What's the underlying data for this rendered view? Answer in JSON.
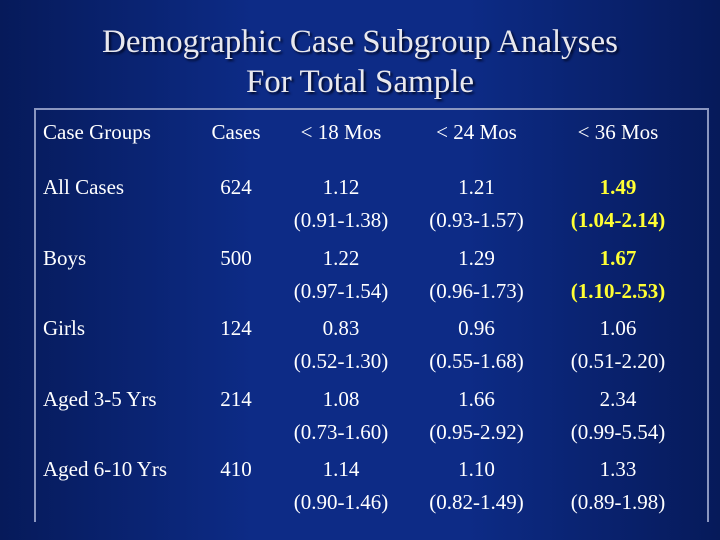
{
  "title_lines": [
    "Demographic Case Subgroup Analyses",
    "For Total Sample"
  ],
  "colors": {
    "highlight": "#ffff33",
    "text": "#ffffff",
    "background": "#0d2b86"
  },
  "table": {
    "headers": [
      "Case Groups",
      "Cases",
      "< 18 Mos",
      "< 24 Mos",
      "< 36 Mos"
    ],
    "rows": [
      {
        "group": "All Cases",
        "cases": "624",
        "m18": {
          "value": "1.12",
          "ci": "(0.91-1.38)"
        },
        "m24": {
          "value": "1.21",
          "ci": "(0.93-1.57)"
        },
        "m36": {
          "value": "1.49",
          "ci": "(1.04-2.14)",
          "highlight": true
        }
      },
      {
        "group": "Boys",
        "cases": "500",
        "m18": {
          "value": "1.22",
          "ci": "(0.97-1.54)"
        },
        "m24": {
          "value": "1.29",
          "ci": "(0.96-1.73)"
        },
        "m36": {
          "value": "1.67",
          "ci": "(1.10-2.53)",
          "highlight": true
        }
      },
      {
        "group": "Girls",
        "cases": "124",
        "m18": {
          "value": "0.83",
          "ci": "(0.52-1.30)"
        },
        "m24": {
          "value": "0.96",
          "ci": "(0.55-1.68)"
        },
        "m36": {
          "value": "1.06",
          "ci": "(0.51-2.20)"
        }
      },
      {
        "group": "Aged 3-5 Yrs",
        "cases": "214",
        "m18": {
          "value": "1.08",
          "ci": "(0.73-1.60)"
        },
        "m24": {
          "value": "1.66",
          "ci": "(0.95-2.92)"
        },
        "m36": {
          "value": "2.34",
          "ci": "(0.99-5.54)"
        }
      },
      {
        "group": "Aged 6-10 Yrs",
        "cases": "410",
        "m18": {
          "value": "1.14",
          "ci": "(0.90-1.46)"
        },
        "m24": {
          "value": "1.10",
          "ci": "(0.82-1.49)"
        },
        "m36": {
          "value": "1.33",
          "ci": "(0.89-1.98)"
        }
      }
    ]
  }
}
